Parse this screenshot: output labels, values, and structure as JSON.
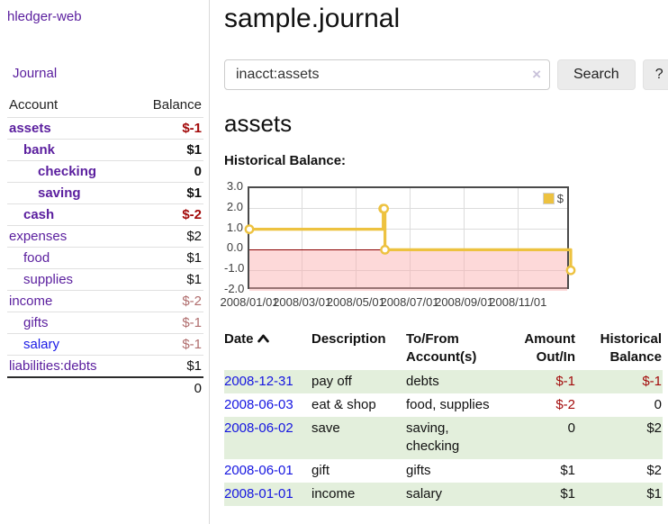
{
  "sidebar": {
    "brand": "hledger-web",
    "nav_journal": "Journal",
    "table": {
      "headers": [
        "Account",
        "Balance"
      ],
      "accounts": [
        {
          "name": "assets",
          "depth": 0,
          "bold": true,
          "balance": "$-1",
          "tone": "neg"
        },
        {
          "name": "bank",
          "depth": 1,
          "bold": true,
          "balance": "$1",
          "tone": ""
        },
        {
          "name": "checking",
          "depth": 2,
          "bold": true,
          "balance": "0",
          "tone": ""
        },
        {
          "name": "saving",
          "depth": 2,
          "bold": true,
          "balance": "$1",
          "tone": ""
        },
        {
          "name": "cash",
          "depth": 1,
          "bold": true,
          "balance": "$-2",
          "tone": "neg"
        },
        {
          "name": "expenses",
          "depth": 0,
          "bold": false,
          "balance": "$2",
          "tone": ""
        },
        {
          "name": "food",
          "depth": 1,
          "bold": false,
          "balance": "$1",
          "tone": ""
        },
        {
          "name": "supplies",
          "depth": 1,
          "bold": false,
          "balance": "$1",
          "tone": ""
        },
        {
          "name": "income",
          "depth": 0,
          "bold": false,
          "balance": "$-2",
          "tone": "soft"
        },
        {
          "name": "gifts",
          "depth": 1,
          "bold": false,
          "balance": "$-1",
          "tone": "soft"
        },
        {
          "name": "salary",
          "depth": 1,
          "bold": false,
          "balance": "$-1",
          "tone": "soft",
          "link_tone": "blue"
        },
        {
          "name": "liabilities:debts",
          "depth": 0,
          "bold": false,
          "balance": "$1",
          "tone": ""
        }
      ],
      "total": "0"
    }
  },
  "header": {
    "title": "sample.journal"
  },
  "search": {
    "value": "inacct:assets",
    "clear_icon": "×",
    "button": "Search",
    "help_button": "?"
  },
  "account_page": {
    "heading": "assets",
    "chart_title": "Historical Balance:"
  },
  "chart_data": {
    "type": "line",
    "step": true,
    "series": [
      {
        "name": "$",
        "color": "#edc240",
        "points": [
          [
            "2008-01-01",
            1
          ],
          [
            "2008-06-01",
            2
          ],
          [
            "2008-06-02",
            2
          ],
          [
            "2008-06-03",
            0
          ],
          [
            "2008-12-31",
            -1
          ]
        ]
      }
    ],
    "x_range": [
      "2008-01-01",
      "2008-12-31"
    ],
    "x_ticks": [
      "2008/01/01",
      "2008/03/01",
      "2008/05/01",
      "2008/07/01",
      "2008/09/01",
      "2008/11/01"
    ],
    "y_ticks": [
      "3.0",
      "2.0",
      "1.0",
      "0.0",
      "-1.0",
      "-2.0"
    ],
    "ylim": [
      -2,
      3
    ],
    "legend": "$",
    "legend_position": "top-right",
    "grid": true,
    "negative_fill": "rgba(250,170,170,0.45)",
    "zero_line_color": "#8b0000"
  },
  "register": {
    "headers": [
      "Date",
      "Description",
      "To/From Account(s)",
      "Amount Out/In",
      "Historical Balance"
    ],
    "rows": [
      {
        "date": "2008-12-31",
        "description": "pay off",
        "accounts": "debts",
        "amount": "$-1",
        "amount_tone": "neg",
        "balance": "$-1",
        "balance_tone": "neg"
      },
      {
        "date": "2008-06-03",
        "description": "eat & shop",
        "accounts": "food, supplies",
        "amount": "$-2",
        "amount_tone": "neg",
        "balance": "0",
        "balance_tone": ""
      },
      {
        "date": "2008-06-02",
        "description": "save",
        "accounts": "saving, checking",
        "amount": "0",
        "amount_tone": "",
        "balance": "$2",
        "balance_tone": ""
      },
      {
        "date": "2008-06-01",
        "description": "gift",
        "accounts": "gifts",
        "amount": "$1",
        "amount_tone": "",
        "balance": "$2",
        "balance_tone": ""
      },
      {
        "date": "2008-01-01",
        "description": "income",
        "accounts": "salary",
        "amount": "$1",
        "amount_tone": "",
        "balance": "$1",
        "balance_tone": ""
      }
    ]
  }
}
